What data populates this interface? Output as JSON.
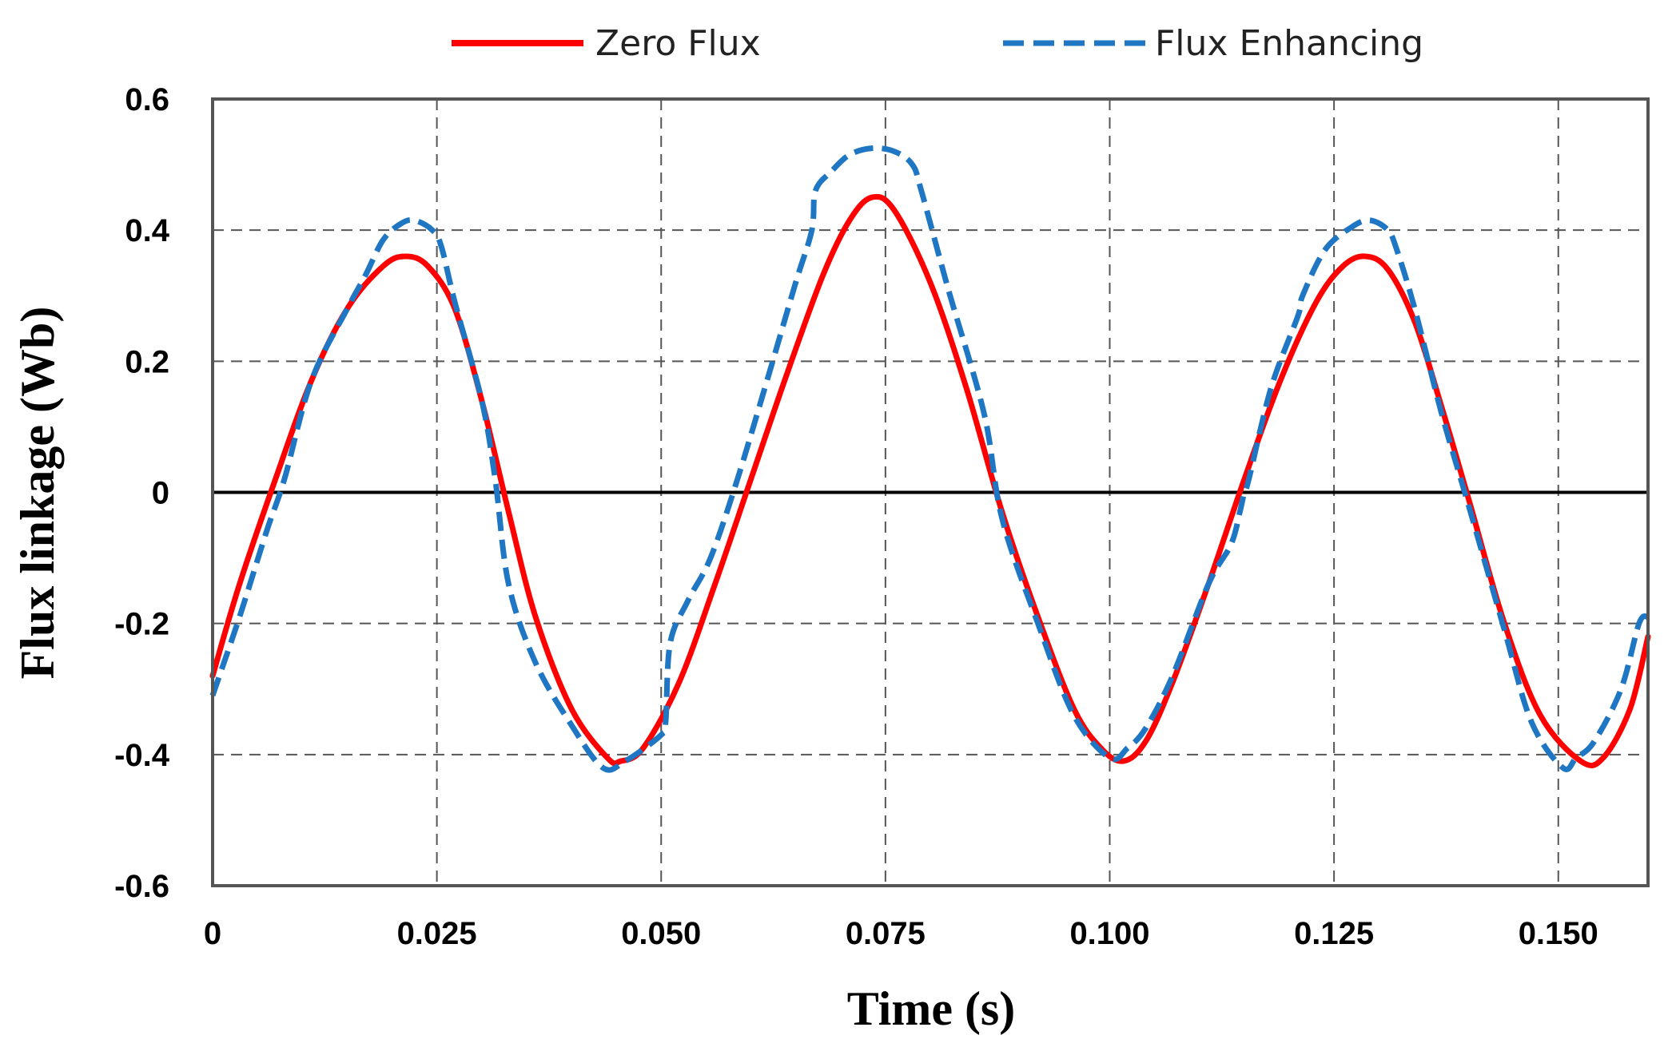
{
  "chart_data": {
    "type": "line",
    "title": "",
    "xlabel": "Time (s)",
    "ylabel": "Flux linkage (Wb)",
    "xlim": [
      0,
      0.16
    ],
    "ylim": [
      -0.6,
      0.6
    ],
    "x_ticks": [
      0,
      0.025,
      0.05,
      0.075,
      0.1,
      0.125,
      0.15
    ],
    "x_tick_labels": [
      "0",
      "0.025",
      "0.050",
      "0.075",
      "0.100",
      "0.125",
      "0.150"
    ],
    "y_ticks": [
      0.6,
      0.4,
      0.2,
      0,
      -0.2,
      -0.4,
      -0.6
    ],
    "y_tick_labels": [
      "0.6",
      "0.4",
      "0.2",
      "0",
      "-0.2",
      "-0.4",
      "-0.6"
    ],
    "grid": true,
    "legend_position": "top",
    "series": [
      {
        "name": "Zero Flux",
        "color": "#ff0000",
        "style": "solid",
        "x": [
          0,
          0.003,
          0.007,
          0.011,
          0.015,
          0.019,
          0.0215,
          0.024,
          0.027,
          0.03,
          0.033,
          0.036,
          0.04,
          0.044,
          0.0455,
          0.048,
          0.052,
          0.056,
          0.06,
          0.064,
          0.068,
          0.071,
          0.0735,
          0.076,
          0.08,
          0.084,
          0.088,
          0.092,
          0.096,
          0.099,
          0.1015,
          0.104,
          0.107,
          0.111,
          0.115,
          0.119,
          0.123,
          0.126,
          0.1285,
          0.131,
          0.134,
          0.137,
          0.14,
          0.144,
          0.148,
          0.1525,
          0.155,
          0.158,
          0.16
        ],
        "y": [
          -0.28,
          -0.14,
          0.02,
          0.17,
          0.28,
          0.345,
          0.36,
          0.345,
          0.28,
          0.14,
          -0.03,
          -0.19,
          -0.33,
          -0.405,
          -0.41,
          -0.39,
          -0.29,
          -0.14,
          0.02,
          0.18,
          0.33,
          0.415,
          0.45,
          0.43,
          0.32,
          0.16,
          -0.03,
          -0.19,
          -0.33,
          -0.39,
          -0.41,
          -0.38,
          -0.29,
          -0.14,
          0.02,
          0.17,
          0.29,
          0.345,
          0.36,
          0.34,
          0.26,
          0.13,
          -0.01,
          -0.2,
          -0.34,
          -0.41,
          -0.405,
          -0.33,
          -0.22
        ]
      },
      {
        "name": "Flux Enhancing",
        "color": "#1f77c4",
        "style": "dashed",
        "x": [
          0,
          0.003,
          0.006,
          0.008,
          0.011,
          0.015,
          0.017,
          0.019,
          0.021,
          0.0225,
          0.0245,
          0.0255,
          0.027,
          0.03,
          0.0315,
          0.033,
          0.036,
          0.04,
          0.0435,
          0.046,
          0.05,
          0.0505,
          0.051,
          0.053,
          0.0555,
          0.0585,
          0.062,
          0.065,
          0.0668,
          0.0672,
          0.069,
          0.071,
          0.0735,
          0.076,
          0.078,
          0.079,
          0.082,
          0.086,
          0.088,
          0.092,
          0.096,
          0.1,
          0.102,
          0.104,
          0.107,
          0.111,
          0.1135,
          0.1145,
          0.115,
          0.1155,
          0.118,
          0.121,
          0.1215,
          0.124,
          0.127,
          0.129,
          0.131,
          0.132,
          0.134,
          0.137,
          0.14,
          0.144,
          0.147,
          0.1505,
          0.152,
          0.154,
          0.157,
          0.159,
          0.16
        ],
        "y": [
          -0.31,
          -0.19,
          -0.06,
          0.02,
          0.17,
          0.28,
          0.33,
          0.385,
          0.41,
          0.415,
          0.4,
          0.375,
          0.29,
          0.14,
          0.02,
          -0.14,
          -0.26,
          -0.355,
          -0.42,
          -0.41,
          -0.37,
          -0.35,
          -0.23,
          -0.165,
          -0.1,
          0.02,
          0.18,
          0.32,
          0.4,
          0.46,
          0.49,
          0.515,
          0.525,
          0.52,
          0.5,
          0.46,
          0.31,
          0.12,
          -0.04,
          -0.2,
          -0.34,
          -0.405,
          -0.39,
          -0.36,
          -0.28,
          -0.14,
          -0.08,
          -0.03,
          0.0,
          0.02,
          0.16,
          0.27,
          0.3,
          0.37,
          0.405,
          0.415,
          0.4,
          0.37,
          0.28,
          0.12,
          -0.02,
          -0.21,
          -0.35,
          -0.42,
          -0.405,
          -0.38,
          -0.3,
          -0.2,
          -0.19
        ]
      }
    ]
  }
}
